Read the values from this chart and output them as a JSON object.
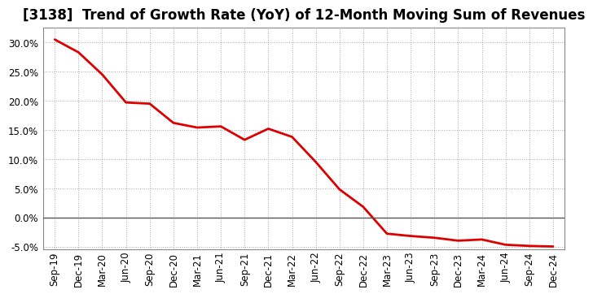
{
  "title": "[3138]  Trend of Growth Rate (YoY) of 12-Month Moving Sum of Revenues",
  "x_labels": [
    "Sep-19",
    "Dec-19",
    "Mar-20",
    "Jun-20",
    "Sep-20",
    "Dec-20",
    "Mar-21",
    "Jun-21",
    "Sep-21",
    "Dec-21",
    "Mar-22",
    "Jun-22",
    "Sep-22",
    "Dec-22",
    "Mar-23",
    "Jun-23",
    "Sep-23",
    "Dec-23",
    "Mar-24",
    "Jun-24",
    "Sep-24",
    "Dec-24"
  ],
  "y_values": [
    0.305,
    0.283,
    0.245,
    0.197,
    0.195,
    0.162,
    0.154,
    0.156,
    0.133,
    0.152,
    0.138,
    0.095,
    0.048,
    0.018,
    -0.028,
    -0.032,
    -0.035,
    -0.04,
    -0.038,
    -0.047,
    -0.049,
    -0.05
  ],
  "line_color": "#dd0000",
  "ylim": [
    -0.055,
    0.325
  ],
  "yticks": [
    -0.05,
    0.0,
    0.05,
    0.1,
    0.15,
    0.2,
    0.25,
    0.3
  ],
  "grid_color": "#aaaaaa",
  "background_color": "#ffffff",
  "title_fontsize": 12,
  "zero_line_color": "#555555",
  "tick_fontsize": 8.5
}
